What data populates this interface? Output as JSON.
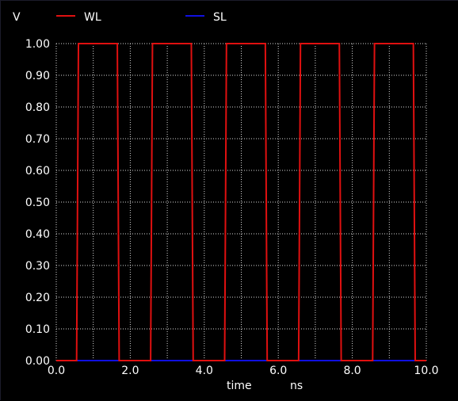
{
  "chart_data": {
    "type": "line",
    "ylabel": "V",
    "xlabel": "time",
    "xunit": "ns",
    "xlim": [
      0.0,
      10.0
    ],
    "ylim": [
      0.0,
      1.0
    ],
    "xticks": [
      "0.0",
      "2.0",
      "4.0",
      "6.0",
      "8.0",
      "10.0"
    ],
    "xtick_values": [
      0,
      2,
      4,
      6,
      8,
      10
    ],
    "yticks": [
      "0.00",
      "0.10",
      "0.20",
      "0.30",
      "0.40",
      "0.50",
      "0.60",
      "0.70",
      "0.80",
      "0.90",
      "1.00"
    ],
    "ytick_values": [
      0,
      0.1,
      0.2,
      0.3,
      0.4,
      0.5,
      0.6,
      0.7,
      0.8,
      0.9,
      1.0
    ],
    "grid": true,
    "legend_position": "top",
    "series": [
      {
        "name": "WL",
        "color": "#e01010",
        "x": [
          0.0,
          0.55,
          0.6,
          1.65,
          1.7,
          2.55,
          2.6,
          3.65,
          3.7,
          4.55,
          4.6,
          5.65,
          5.7,
          6.55,
          6.6,
          7.65,
          7.7,
          8.55,
          8.6,
          9.65,
          9.7,
          10.0
        ],
        "y": [
          0.0,
          0.0,
          1.0,
          1.0,
          0.0,
          0.0,
          1.0,
          1.0,
          0.0,
          0.0,
          1.0,
          1.0,
          0.0,
          0.0,
          1.0,
          1.0,
          0.0,
          0.0,
          1.0,
          1.0,
          0.0,
          0.0
        ]
      },
      {
        "name": "SL",
        "color": "#1010e0",
        "x": [
          0.0,
          10.0
        ],
        "y": [
          0.0,
          0.0
        ]
      }
    ]
  }
}
